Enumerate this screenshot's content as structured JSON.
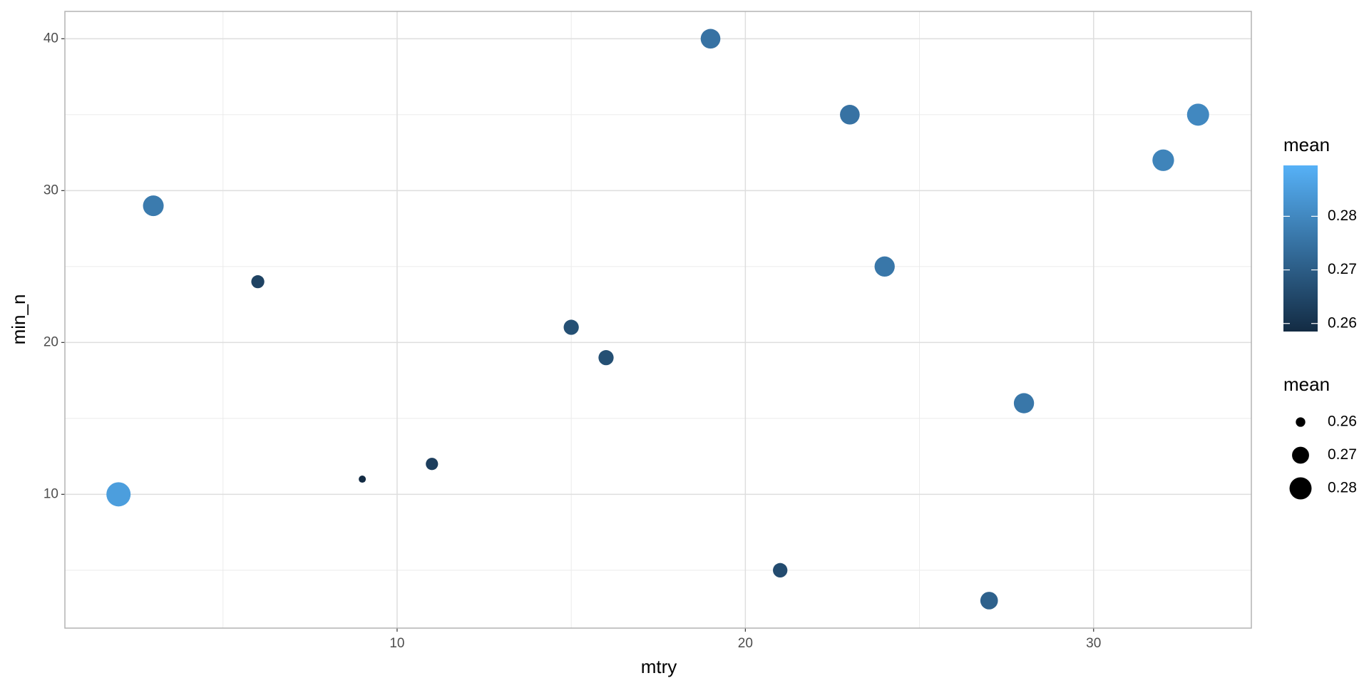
{
  "chart_data": {
    "type": "scatter",
    "x_label": "mtry",
    "y_label": "min_n",
    "x": [
      2,
      3,
      6,
      9,
      11,
      15,
      16,
      19,
      21,
      23,
      24,
      27,
      28,
      32,
      33
    ],
    "values": [
      10,
      29,
      24,
      11,
      12,
      21,
      19,
      40,
      5,
      35,
      25,
      3,
      16,
      32,
      35
    ],
    "mean": [
      0.285,
      0.277,
      0.264,
      0.258,
      0.263,
      0.267,
      0.267,
      0.275,
      0.266,
      0.275,
      0.276,
      0.271,
      0.276,
      0.279,
      0.28
    ],
    "xlim": [
      0.46,
      34.53
    ],
    "ylim": [
      1.19,
      41.8
    ],
    "xticks": [
      10,
      20,
      30
    ],
    "yticks": [
      10,
      20,
      30,
      40
    ],
    "xminorticks": [
      5,
      15,
      25
    ],
    "yminorticks": [
      5,
      15,
      25,
      35
    ],
    "grid": true,
    "color_legend_title": "mean",
    "color_low": "#132B43",
    "color_high": "#56B1F7",
    "colorlim": [
      0.2585,
      0.2895
    ],
    "colorticks": [
      0.26,
      0.27,
      0.28
    ],
    "size_legend_title": "mean",
    "size_breaks": [
      0.26,
      0.27,
      0.28
    ],
    "size_legend_color": "#000000"
  }
}
